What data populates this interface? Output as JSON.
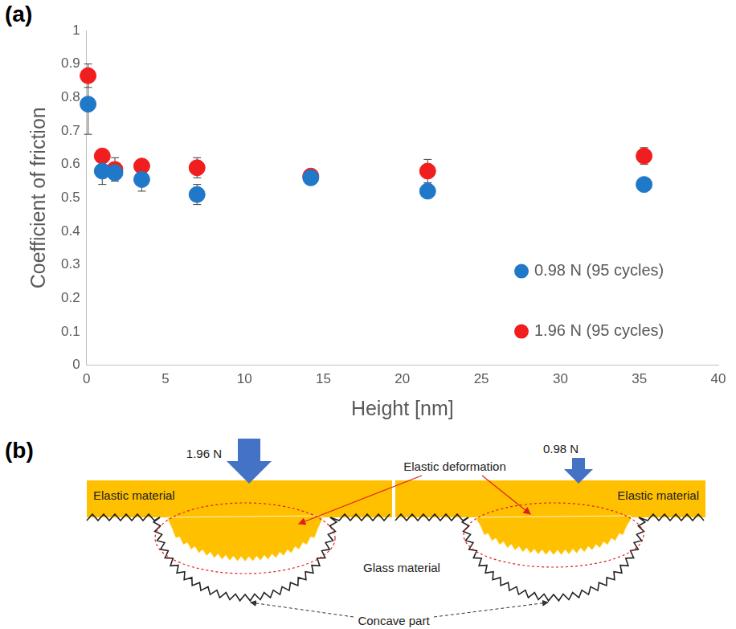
{
  "panel_labels": [
    "(a)",
    "(b)"
  ],
  "chart_data": {
    "type": "scatter",
    "x_label": "Height [nm]",
    "y_label": "Coefficient of friction",
    "x": [
      0.1,
      1.0,
      1.8,
      3.5,
      7.0,
      14.2,
      21.6,
      35.3
    ],
    "series": [
      {
        "name": "0.98 N (95 cycles)",
        "color": "#1f78c8",
        "marker": "circle",
        "values": [
          0.78,
          0.58,
          0.575,
          0.555,
          0.51,
          0.56,
          0.52,
          0.54
        ],
        "errors": [
          0.09,
          0.04,
          0.01,
          0.035,
          0.03,
          0.01,
          0.01,
          0.01
        ]
      },
      {
        "name": "1.96 N (95 cycles)",
        "color": "#f01e1e",
        "marker": "circle",
        "values": [
          0.865,
          0.625,
          0.585,
          0.595,
          0.59,
          0.565,
          0.58,
          0.625
        ],
        "errors": [
          0.035,
          0.01,
          0.035,
          0.01,
          0.03,
          0.01,
          0.035,
          0.025
        ]
      }
    ],
    "xlim": [
      0,
      40
    ],
    "xticks": [
      0,
      5,
      10,
      15,
      20,
      25,
      30,
      35,
      40
    ],
    "ylim": [
      0,
      1
    ],
    "yticks": [
      0,
      0.1,
      0.2,
      0.3,
      0.4,
      0.5,
      0.6,
      0.7,
      0.8,
      0.9,
      1
    ],
    "grid": false,
    "legend": "lower right"
  },
  "diagram": {
    "left": {
      "load": "1.96 N",
      "material": "Elastic material"
    },
    "right": {
      "load": "0.98 N",
      "material": "Elastic material"
    },
    "deformation_label": "Elastic deformation",
    "glass_label": "Glass material",
    "concave_label": "Concave part"
  }
}
